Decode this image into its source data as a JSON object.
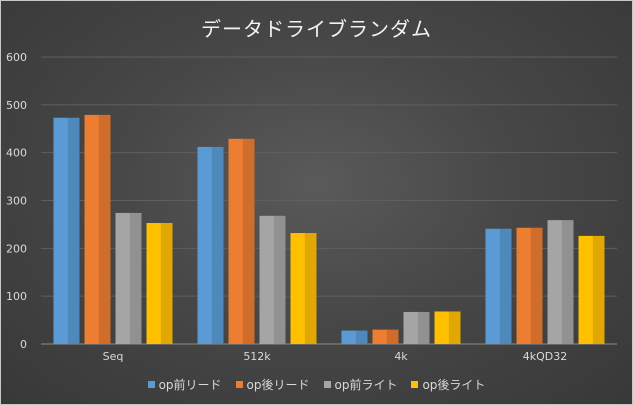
{
  "chart_data": {
    "type": "bar",
    "title": "データドライブランダム",
    "categories": [
      "Seq",
      "512k",
      "4k",
      "4kQD32"
    ],
    "series": [
      {
        "name": "op前リード",
        "values": [
          473,
          412,
          28,
          241
        ],
        "color": "#5b9bd5"
      },
      {
        "name": "op後リード",
        "values": [
          479,
          429,
          30,
          243
        ],
        "color": "#ed7d31"
      },
      {
        "name": "op前ライト",
        "values": [
          274,
          268,
          67,
          259
        ],
        "color": "#a5a5a5"
      },
      {
        "name": "op後ライト",
        "values": [
          253,
          232,
          68,
          226
        ],
        "color": "#ffc000"
      }
    ],
    "ylim": [
      0,
      600
    ],
    "yticks": [
      "0",
      "100",
      "200",
      "300",
      "400",
      "500",
      "600"
    ],
    "grid": true,
    "legend": "bottom"
  }
}
